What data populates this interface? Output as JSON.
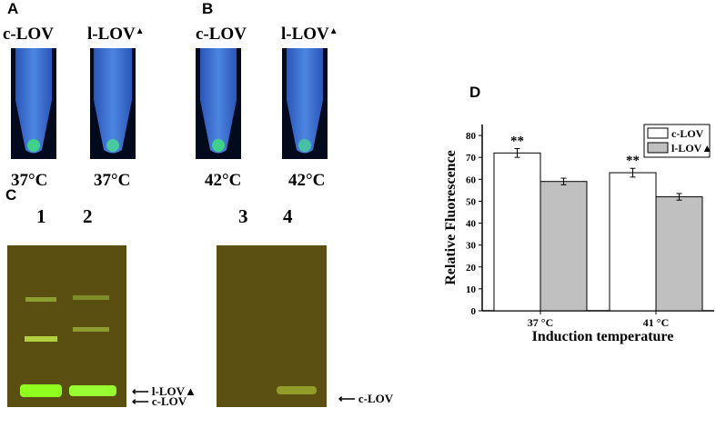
{
  "panels": {
    "a": "A",
    "b": "B",
    "c": "C",
    "d": "D"
  },
  "tubes": [
    {
      "label": "c-LOV",
      "mark": "",
      "temp": "37°C"
    },
    {
      "label": "l-LOV",
      "mark": "▲",
      "temp": "37°C"
    },
    {
      "label": "c-LOV",
      "mark": "",
      "temp": "42°C"
    },
    {
      "label": "l-LOV",
      "mark": "▲",
      "temp": "42°C"
    }
  ],
  "gel": {
    "lanes": [
      "1",
      "2",
      "3",
      "4"
    ],
    "arrows": {
      "l_lov": "l-LOV▲",
      "c_lov_left": "c-LOV",
      "c_lov_right": "c-LOV"
    }
  },
  "chart_data": {
    "type": "bar",
    "categories": [
      "37 °C",
      "41 °C"
    ],
    "series": [
      {
        "name": "c-LOV",
        "values": [
          72,
          63
        ],
        "errors": [
          2,
          2
        ],
        "color": "#ffffff"
      },
      {
        "name": "l-LOV▲",
        "values": [
          59,
          52
        ],
        "errors": [
          1.5,
          1.5
        ],
        "color": "#c0c0c0"
      }
    ],
    "annotations": [
      "**",
      "**"
    ],
    "xlabel": "Induction temperature",
    "ylabel": "Relative Fluorescence",
    "ylim": [
      0,
      85
    ],
    "yticks": [
      0,
      10,
      20,
      30,
      40,
      50,
      60,
      70,
      80
    ],
    "legend": "top-right",
    "grid": false
  }
}
